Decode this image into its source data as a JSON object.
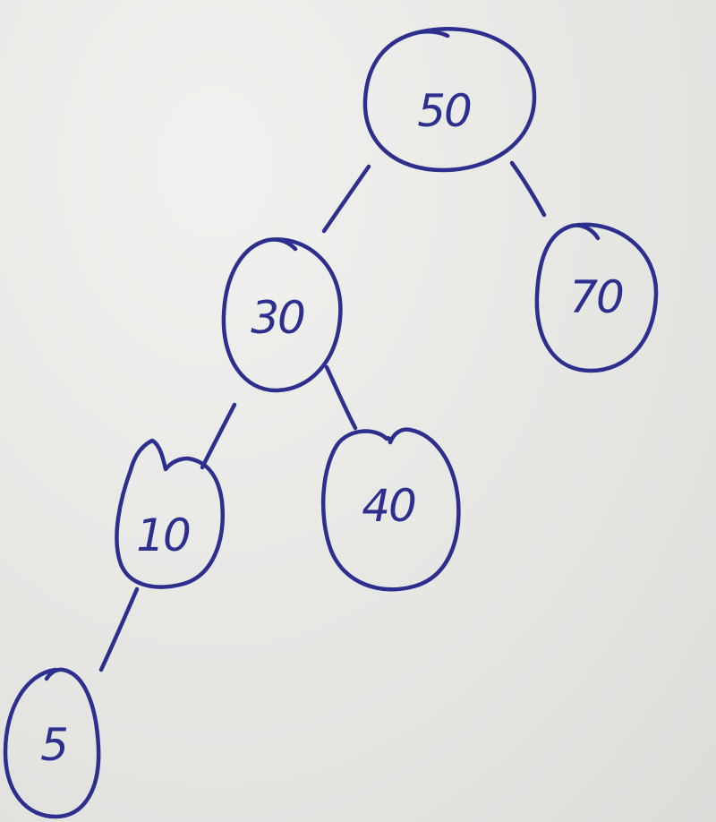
{
  "diagram": {
    "ink_color": "#2d2f8f",
    "paper_color": "#e9e9e7",
    "nodes": [
      {
        "id": "n50",
        "label": "50"
      },
      {
        "id": "n30",
        "label": "30"
      },
      {
        "id": "n70",
        "label": "70"
      },
      {
        "id": "n10",
        "label": "10"
      },
      {
        "id": "n40",
        "label": "40"
      },
      {
        "id": "n5",
        "label": "5"
      }
    ],
    "edges": [
      {
        "from": "n50",
        "to": "n30"
      },
      {
        "from": "n50",
        "to": "n70"
      },
      {
        "from": "n30",
        "to": "n10"
      },
      {
        "from": "n30",
        "to": "n40"
      },
      {
        "from": "n10",
        "to": "n5"
      }
    ]
  }
}
